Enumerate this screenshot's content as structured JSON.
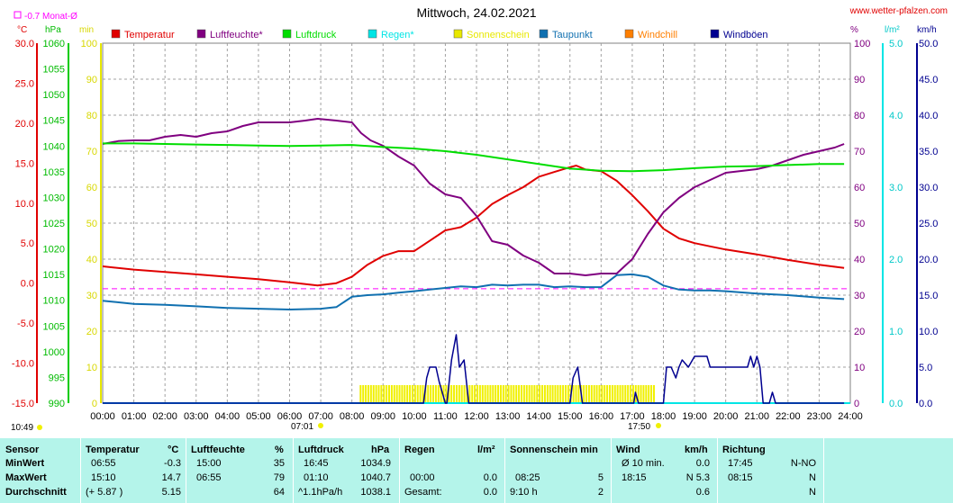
{
  "title": "Mittwoch, 24.02.2021",
  "site": "www.wetter-pfalzen.com",
  "monthly_avg_label": "-0.7 Monat-Ø",
  "unit_labels": {
    "temp": "°C",
    "press": "hPa",
    "sun": "min",
    "hum": "%",
    "rain": "l/m²",
    "wind": "km/h"
  },
  "sunrise": "07:01",
  "sunset": "17:50",
  "timestamp": "10:49",
  "legend": [
    {
      "label": "Temperatur",
      "color": "#e00000"
    },
    {
      "label": "Luftfeuchte*",
      "color": "#800080"
    },
    {
      "label": "Luftdruck",
      "color": "#00dd00"
    },
    {
      "label": "Regen*",
      "color": "#00e5e5"
    },
    {
      "label": "Sonnenschein",
      "color": "#e8e800"
    },
    {
      "label": "Taupunkt",
      "color": "#1070b0"
    },
    {
      "label": "Windchill",
      "color": "#ff7f00"
    },
    {
      "label": "Windböen",
      "color": "#000090"
    }
  ],
  "chart_data": {
    "type": "line",
    "title": "Mittwoch, 24.02.2021",
    "x_label_times": [
      "00:00",
      "01:00",
      "02:00",
      "03:00",
      "04:00",
      "05:00",
      "06:00",
      "07:00",
      "08:00",
      "09:00",
      "10:00",
      "11:00",
      "12:00",
      "13:00",
      "14:00",
      "15:00",
      "16:00",
      "17:00",
      "18:00",
      "19:00",
      "20:00",
      "21:00",
      "22:00",
      "23:00",
      "24:00"
    ],
    "axes": {
      "temp_c": {
        "range": [
          -15,
          30
        ],
        "ticks": [
          "30.0",
          "25.0",
          "20.0",
          "15.0",
          "10.0",
          "5.0",
          "0.0",
          "-5.0",
          "-10.0",
          "-15.0"
        ]
      },
      "pressure_hpa": {
        "range": [
          990,
          1060
        ],
        "ticks": [
          "1060",
          "1055",
          "1050",
          "1045",
          "1040",
          "1035",
          "1030",
          "1025",
          "1020",
          "1015",
          "1010",
          "1005",
          "1000",
          "995",
          "990"
        ]
      },
      "sunshine_min": {
        "range": [
          0,
          100
        ],
        "ticks": [
          "100",
          "90",
          "80",
          "70",
          "60",
          "50",
          "40",
          "30",
          "20",
          "10",
          "0"
        ]
      },
      "humidity_pct": {
        "range": [
          0,
          100
        ],
        "ticks": [
          "100",
          "90",
          "80",
          "70",
          "60",
          "50",
          "40",
          "30",
          "20",
          "10",
          "0"
        ]
      },
      "rain_lm2": {
        "range": [
          0,
          5
        ],
        "ticks": [
          "5.0",
          "4.0",
          "3.0",
          "2.0",
          "1.0",
          "0.0"
        ]
      },
      "wind_kmh": {
        "range": [
          0,
          50
        ],
        "ticks": [
          "50.0",
          "45.0",
          "40.0",
          "35.0",
          "30.0",
          "25.0",
          "20.0",
          "15.0",
          "10.0",
          "5.0",
          "0.0"
        ]
      }
    },
    "monthly_avg_temp": -0.7,
    "series": [
      {
        "name": "Temperatur",
        "color": "#e00000",
        "axis": "temp_c",
        "width": 2,
        "x": [
          0,
          1,
          2,
          3,
          4,
          5,
          6,
          6.9,
          7.5,
          8,
          8.5,
          9,
          9.5,
          10,
          10.5,
          11,
          11.5,
          12,
          12.5,
          13,
          13.5,
          14,
          14.5,
          15,
          15.2,
          15.5,
          16,
          16.5,
          17,
          17.5,
          18,
          18.5,
          19,
          19.5,
          20,
          21,
          22,
          23,
          23.8
        ],
        "y": [
          2.1,
          1.7,
          1.4,
          1.1,
          0.8,
          0.5,
          0.1,
          -0.3,
          0.0,
          0.8,
          2.3,
          3.4,
          4.0,
          4.0,
          5.3,
          6.6,
          7.0,
          8.2,
          9.9,
          11.0,
          12.0,
          13.3,
          13.9,
          14.5,
          14.7,
          14.2,
          14.0,
          12.8,
          11.0,
          9.0,
          6.8,
          5.6,
          5.0,
          4.6,
          4.2,
          3.6,
          2.9,
          2.3,
          1.9
        ]
      },
      {
        "name": "Luftfeuchte*",
        "color": "#800080",
        "axis": "humidity_pct",
        "width": 2,
        "x": [
          0,
          0.5,
          1,
          1.5,
          2,
          2.5,
          3,
          3.5,
          4,
          4.5,
          5,
          5.5,
          6,
          6.5,
          6.9,
          7.5,
          8,
          8.3,
          8.6,
          9,
          9.5,
          10,
          10.5,
          11,
          11.5,
          12,
          12.5,
          13,
          13.5,
          14,
          14.5,
          15,
          15.5,
          16,
          16.5,
          17,
          17.5,
          18,
          18.5,
          19,
          19.5,
          20,
          20.5,
          21,
          21.5,
          22,
          22.5,
          23,
          23.5,
          23.8
        ],
        "y": [
          72,
          72.8,
          73,
          73,
          74,
          74.5,
          74,
          75,
          75.5,
          77,
          78,
          78,
          78,
          78.5,
          79,
          78.5,
          78,
          75,
          73,
          71.5,
          68.5,
          66,
          61,
          58,
          57,
          52,
          45,
          44,
          41,
          39,
          36,
          36,
          35.5,
          36,
          36,
          40,
          47,
          53,
          57,
          60,
          62,
          64,
          64.5,
          65,
          66,
          67.5,
          69,
          70,
          71,
          72
        ]
      },
      {
        "name": "Luftdruck",
        "color": "#00dd00",
        "axis": "pressure_hpa",
        "width": 2,
        "x": [
          0,
          1,
          2,
          3,
          4,
          5,
          6,
          7,
          8,
          9,
          10,
          11,
          12,
          13,
          14,
          15,
          16,
          17,
          18,
          19,
          20,
          21,
          22,
          23,
          23.8
        ],
        "y": [
          1040.5,
          1040.5,
          1040.4,
          1040.3,
          1040.2,
          1040.1,
          1040.0,
          1040.1,
          1040.2,
          1039.8,
          1039.5,
          1039.0,
          1038.3,
          1037.4,
          1036.5,
          1035.6,
          1035.2,
          1035.1,
          1035.3,
          1035.7,
          1036.0,
          1036.1,
          1036.3,
          1036.5,
          1036.5
        ]
      },
      {
        "name": "Taupunkt",
        "color": "#1070b0",
        "axis": "temp_c",
        "width": 2,
        "x": [
          0,
          1,
          2,
          3,
          4,
          5,
          6,
          7,
          7.5,
          8,
          8.5,
          9,
          9.5,
          10,
          10.5,
          11,
          11.5,
          12,
          12.5,
          13,
          13.5,
          14,
          14.5,
          15,
          15.5,
          16,
          16.5,
          17,
          17.5,
          18,
          18.5,
          19,
          19.5,
          20,
          21,
          22,
          23,
          23.8
        ],
        "y": [
          -2.2,
          -2.6,
          -2.7,
          -2.9,
          -3.1,
          -3.2,
          -3.3,
          -3.2,
          -3.0,
          -1.7,
          -1.5,
          -1.4,
          -1.2,
          -1.0,
          -0.8,
          -0.6,
          -0.4,
          -0.5,
          -0.2,
          -0.3,
          -0.2,
          -0.2,
          -0.5,
          -0.4,
          -0.5,
          -0.5,
          1.0,
          1.1,
          0.8,
          -0.3,
          -0.8,
          -0.9,
          -0.9,
          -1.0,
          -1.3,
          -1.5,
          -1.8,
          -2.0
        ]
      },
      {
        "name": "Windböen",
        "color": "#000090",
        "axis": "wind_kmh",
        "width": 1.5,
        "x": [
          0,
          10.3,
          10.4,
          10.5,
          10.7,
          10.8,
          11,
          11.05,
          11.2,
          11.35,
          11.45,
          11.6,
          11.75,
          12,
          15.0,
          15.1,
          15.25,
          15.4,
          17,
          17.05,
          17.1,
          17.2,
          18,
          18.1,
          18.25,
          18.4,
          18.5,
          18.6,
          18.8,
          19,
          19.1,
          19.2,
          19.4,
          19.5,
          19.6,
          20.3,
          20.5,
          20.6,
          20.7,
          20.8,
          20.9,
          21,
          21.1,
          21.2,
          21.4,
          21.5,
          21.6,
          23.8
        ],
        "y": [
          0,
          0,
          3.5,
          5,
          5,
          3,
          0,
          0,
          6,
          9.5,
          5,
          6,
          0,
          0,
          0,
          3.5,
          5,
          0,
          0,
          0,
          1.5,
          0,
          0,
          5,
          5,
          3.5,
          5,
          6,
          5,
          6.5,
          6.5,
          6.5,
          6.5,
          5,
          5,
          5,
          5,
          5,
          5,
          6.5,
          5,
          6.5,
          5,
          0,
          0,
          1.5,
          0,
          0
        ]
      }
    ],
    "sunshine_bars": {
      "color": "#f0f000",
      "from": 8.25,
      "to": 17.7,
      "height_min": 5
    },
    "rain": {
      "color": "#00e5e5",
      "value": 0.0
    }
  },
  "table": {
    "headers": {
      "sensor": "Sensor",
      "temp": "Temperatur",
      "temp_unit": "°C",
      "hum": "Luftfeuchte",
      "hum_unit": "%",
      "press": "Luftdruck",
      "press_unit": "hPa",
      "rain": "Regen",
      "rain_unit": "l/m²",
      "sun": "Sonnenschein min",
      "wind": "Wind",
      "wind_unit": "km/h",
      "dir": "Richtung"
    },
    "rows": [
      {
        "label": "MinWert",
        "t_time": "06:55",
        "t_val": "-0.3",
        "h_time": "15:00",
        "h_val": "35",
        "p_time": "16:45",
        "p_val": "1034.9",
        "r_time": "",
        "r_val": "",
        "s_time": "",
        "s_val": "",
        "w_time": "Ø 10 min.",
        "w_val": "0.0",
        "d_time": "17:45",
        "d_val": "N-NO"
      },
      {
        "label": "MaxWert",
        "t_time": "15:10",
        "t_val": "14.7",
        "h_time": "06:55",
        "h_val": "79",
        "p_time": "01:10",
        "p_val": "1040.7",
        "r_time": "00:00",
        "r_val": "0.0",
        "s_time": "08:25",
        "s_val": "5",
        "w_time": "18:15",
        "w_val": "N 5.3",
        "d_time": "08:15",
        "d_val": "N"
      },
      {
        "label": "Durchschnitt",
        "t_time": "(+ 5.87 )",
        "t_val": "5.15",
        "h_time": "",
        "h_val": "64",
        "p_time": "^1.1hPa/h",
        "p_val": "1038.1",
        "r_time": "Gesamt:",
        "r_val": "0.0",
        "s_time": "9:10 h",
        "s_val": "2",
        "w_time": "",
        "w_val": "0.6",
        "d_time": "",
        "d_val": "N"
      }
    ]
  }
}
